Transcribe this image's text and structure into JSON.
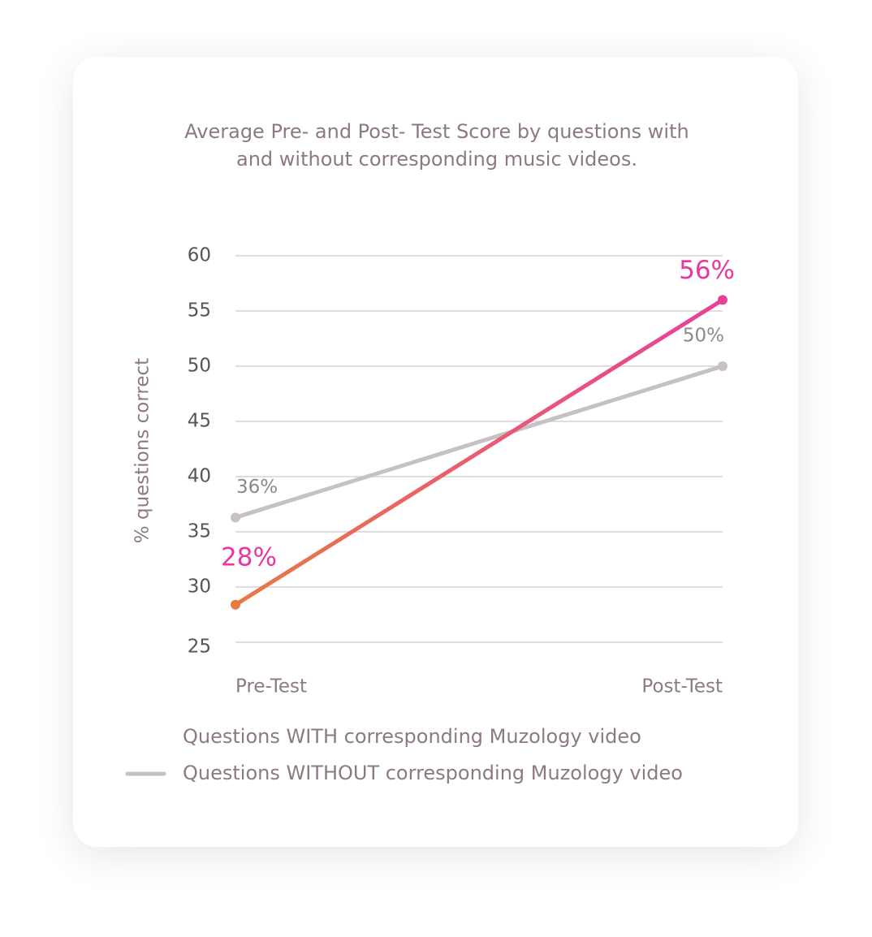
{
  "chart_data": {
    "type": "line",
    "title": [
      "Average Pre- and Post- Test Score by questions with",
      "and without corresponding music videos."
    ],
    "y_label": "% questions correct",
    "categories": [
      "Pre-Test",
      "Post-Test"
    ],
    "series": [
      {
        "name": "Questions WITH corresponding Muzology video",
        "color": "#e8409a",
        "gradient": [
          "#e87a45",
          "#e8409a"
        ],
        "values": [
          28.4,
          56
        ],
        "value_labels": [
          "28%",
          "56%"
        ]
      },
      {
        "name": "Questions WITHOUT corresponding Muzology video",
        "color": "#c8c1c3",
        "values": [
          36.3,
          50
        ],
        "value_labels": [
          "36%",
          "50%"
        ]
      }
    ],
    "ylim": [
      25,
      60
    ],
    "yticks": [
      25,
      30,
      35,
      40,
      45,
      50,
      55,
      60
    ],
    "grid": true,
    "legend": "bottom"
  }
}
